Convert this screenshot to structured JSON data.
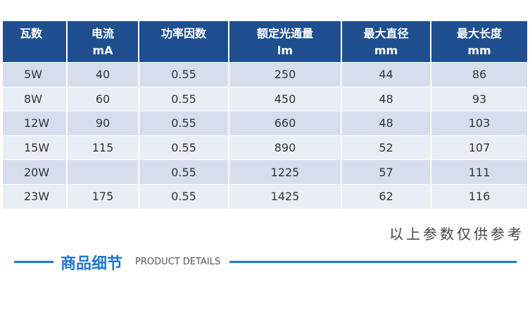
{
  "table": {
    "header": [
      [
        "瓦数"
      ],
      [
        "电流",
        "mA"
      ],
      [
        "功率因数"
      ],
      [
        "额定光通量",
        "lm"
      ],
      [
        "最大直径",
        "mm"
      ],
      [
        "最大长度",
        "mm"
      ]
    ],
    "rows": [
      [
        "5W",
        "40",
        "0.55",
        "250",
        "44",
        "86"
      ],
      [
        "8W",
        "60",
        "0.55",
        "450",
        "48",
        "93"
      ],
      [
        "12W",
        "90",
        "0.55",
        "660",
        "48",
        "103"
      ],
      [
        "15W",
        "115",
        "0.55",
        "890",
        "52",
        "107"
      ],
      [
        "20W",
        null,
        "0.55",
        "1225",
        "57",
        "111"
      ],
      [
        "23W",
        "175",
        "0.55",
        "1425",
        "62",
        "116"
      ]
    ]
  },
  "note": "以上参数仅供参考",
  "section": {
    "title": "商品细节",
    "subtitle": "PRODUCT DETAILS"
  }
}
